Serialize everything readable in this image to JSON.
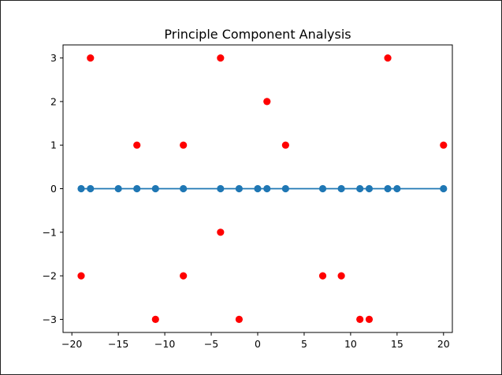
{
  "chart_data": {
    "type": "scatter",
    "title": "Principle Component Analysis",
    "xlabel": "",
    "ylabel": "",
    "xlim": [
      -20.95,
      20.95
    ],
    "ylim": [
      -3.3,
      3.3
    ],
    "x_ticks": [
      -20,
      -15,
      -10,
      -5,
      0,
      5,
      10,
      15,
      20
    ],
    "x_tick_labels": [
      "−20",
      "−15",
      "−10",
      "−5",
      "0",
      "5",
      "10",
      "15",
      "20"
    ],
    "y_ticks": [
      -3,
      -2,
      -1,
      0,
      1,
      2,
      3
    ],
    "y_tick_labels": [
      "−3",
      "−2",
      "−1",
      "0",
      "1",
      "2",
      "3"
    ],
    "grid": false,
    "series": [
      {
        "kind": "scatter",
        "color": "#ff0000",
        "points": [
          {
            "x": -18,
            "y": 3
          },
          {
            "x": -4,
            "y": 3
          },
          {
            "x": 14,
            "y": 3
          },
          {
            "x": 1,
            "y": 2
          },
          {
            "x": -13,
            "y": 1
          },
          {
            "x": -8,
            "y": 1
          },
          {
            "x": 3,
            "y": 1
          },
          {
            "x": 20,
            "y": 1
          },
          {
            "x": -4,
            "y": -1
          },
          {
            "x": -19,
            "y": -2
          },
          {
            "x": -8,
            "y": -2
          },
          {
            "x": 7,
            "y": -2
          },
          {
            "x": 9,
            "y": -2
          },
          {
            "x": -11,
            "y": -3
          },
          {
            "x": -2,
            "y": -3
          },
          {
            "x": 11,
            "y": -3
          },
          {
            "x": 12,
            "y": -3
          }
        ]
      },
      {
        "kind": "line-with-markers",
        "color": "#1f77b4",
        "points": [
          {
            "x": -19,
            "y": 0
          },
          {
            "x": -18,
            "y": 0
          },
          {
            "x": -15,
            "y": 0
          },
          {
            "x": -13,
            "y": 0
          },
          {
            "x": -11,
            "y": 0
          },
          {
            "x": -8,
            "y": 0
          },
          {
            "x": -4,
            "y": 0
          },
          {
            "x": -2,
            "y": 0
          },
          {
            "x": 0,
            "y": 0
          },
          {
            "x": 1,
            "y": 0
          },
          {
            "x": 3,
            "y": 0
          },
          {
            "x": 7,
            "y": 0
          },
          {
            "x": 9,
            "y": 0
          },
          {
            "x": 11,
            "y": 0
          },
          {
            "x": 12,
            "y": 0
          },
          {
            "x": 14,
            "y": 0
          },
          {
            "x": 15,
            "y": 0
          },
          {
            "x": 20,
            "y": 0
          }
        ]
      }
    ]
  }
}
